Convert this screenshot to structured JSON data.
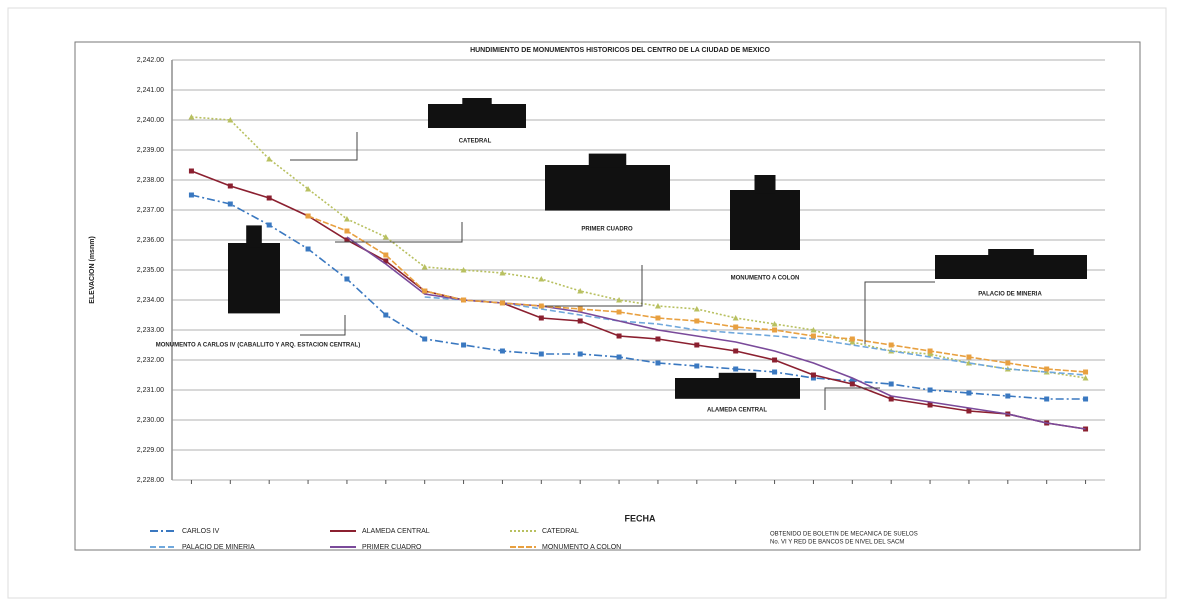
{
  "chart_data": {
    "type": "line",
    "title": "HUNDIMIENTO DE MONUMENTOS HISTORICOS DEL CENTRO DE LA CIUDAD DE MEXICO",
    "ylabel": "ELEVACION (msnm)",
    "xlabel": "FECHA",
    "note": [
      "OBTENIDO DE BOLETIN DE MECANICA DE SUELOS",
      "No. VI Y RED DE BANCOS DE NIVEL DEL SACM"
    ],
    "categories": [
      null,
      null,
      null,
      null,
      null,
      null,
      null,
      null,
      null,
      null,
      null,
      null,
      null,
      null,
      null,
      null,
      null,
      null,
      null,
      null,
      null,
      null,
      null,
      null
    ],
    "ylim": [
      2228,
      2242
    ],
    "yticks": [
      {
        "value": 2228,
        "label": "2,228.00"
      },
      {
        "value": 2229,
        "label": "2,229.00"
      },
      {
        "value": 2230,
        "label": "2,230.00"
      },
      {
        "value": 2231,
        "label": "2,231.00"
      },
      {
        "value": 2232,
        "label": "2,232.00"
      },
      {
        "value": 2233,
        "label": "2,233.00"
      },
      {
        "value": 2234,
        "label": "2,234.00"
      },
      {
        "value": 2235,
        "label": "2,235.00"
      },
      {
        "value": 2236,
        "label": "2,236.00"
      },
      {
        "value": 2237,
        "label": "2,237.00"
      },
      {
        "value": 2238,
        "label": "2,238.00"
      },
      {
        "value": 2239,
        "label": "2,239.00"
      },
      {
        "value": 2240,
        "label": "2,240.00"
      },
      {
        "value": 2241,
        "label": "2,241.00"
      },
      {
        "value": 2242,
        "label": "2,242.00"
      }
    ],
    "grid": true,
    "series": [
      {
        "name": "CARLOS IV",
        "color": "#3a78c0",
        "values": [
          2237.5,
          2237.2,
          2236.5,
          2235.7,
          2234.7,
          2233.5,
          2232.7,
          2232.5,
          2232.3,
          2232.2,
          2232.2,
          2232.1,
          2231.9,
          2231.8,
          2231.7,
          2231.6,
          2231.4,
          2231.3,
          2231.2,
          2231.0,
          2230.9,
          2230.8,
          2230.7,
          2230.7
        ]
      },
      {
        "name": "ALAMEDA CENTRAL",
        "color": "#8b2030",
        "values": [
          2238.3,
          2237.8,
          2237.4,
          2236.8,
          2236.0,
          2235.3,
          2234.3,
          2234.0,
          2233.9,
          2233.4,
          2233.3,
          2232.8,
          2232.7,
          2232.5,
          2232.3,
          2232.0,
          2231.5,
          2231.2,
          2230.7,
          2230.5,
          2230.3,
          2230.2,
          2229.9,
          2229.7
        ]
      },
      {
        "name": "CATEDRAL",
        "color": "#b8c060",
        "values": [
          2240.1,
          2240.0,
          2238.7,
          2237.7,
          2236.7,
          2236.1,
          2235.1,
          2235.0,
          2234.9,
          2234.7,
          2234.3,
          2234.0,
          2233.8,
          2233.7,
          2233.4,
          2233.2,
          2233.0,
          2232.6,
          2232.3,
          2232.2,
          2231.9,
          2231.7,
          2231.6,
          2231.4
        ]
      },
      {
        "name": "PALACIO DE MINERIA",
        "color": "#70a8dc",
        "values": [
          null,
          null,
          null,
          null,
          null,
          null,
          2234.1,
          2234.0,
          2233.9,
          2233.7,
          2233.5,
          2233.3,
          2233.2,
          2233.0,
          2232.9,
          2232.8,
          2232.7,
          2232.5,
          2232.3,
          2232.1,
          2231.9,
          2231.7,
          2231.6,
          2231.5
        ]
      },
      {
        "name": "PRIMER CUADRO",
        "color": "#7a4a9a",
        "values": [
          null,
          null,
          null,
          null,
          2236.1,
          2235.2,
          2234.2,
          2234.0,
          2233.9,
          2233.8,
          2233.6,
          2233.3,
          2233.0,
          2232.8,
          2232.6,
          2232.3,
          2231.9,
          2231.4,
          2230.8,
          2230.6,
          2230.4,
          2230.2,
          2229.9,
          2229.7
        ]
      },
      {
        "name": "MONUMENTO A COLON",
        "color": "#e8a040",
        "values": [
          null,
          null,
          null,
          2236.8,
          2236.3,
          2235.5,
          2234.3,
          2234.0,
          2233.9,
          2233.8,
          2233.7,
          2233.6,
          2233.4,
          2233.3,
          2233.1,
          2233.0,
          2232.8,
          2232.7,
          2232.5,
          2232.3,
          2232.1,
          2231.9,
          2231.7,
          2231.6
        ]
      }
    ],
    "annotations": [
      "CATEDRAL",
      "PRIMER CUADRO",
      "MONUMENTO A COLON",
      "PALACIO DE MINERIA",
      "ALAMEDA CENTRAL",
      "MONUMENTO A CARLOS IV (CABALLITO Y ARQ. ESTACION CENTRAL)"
    ]
  }
}
